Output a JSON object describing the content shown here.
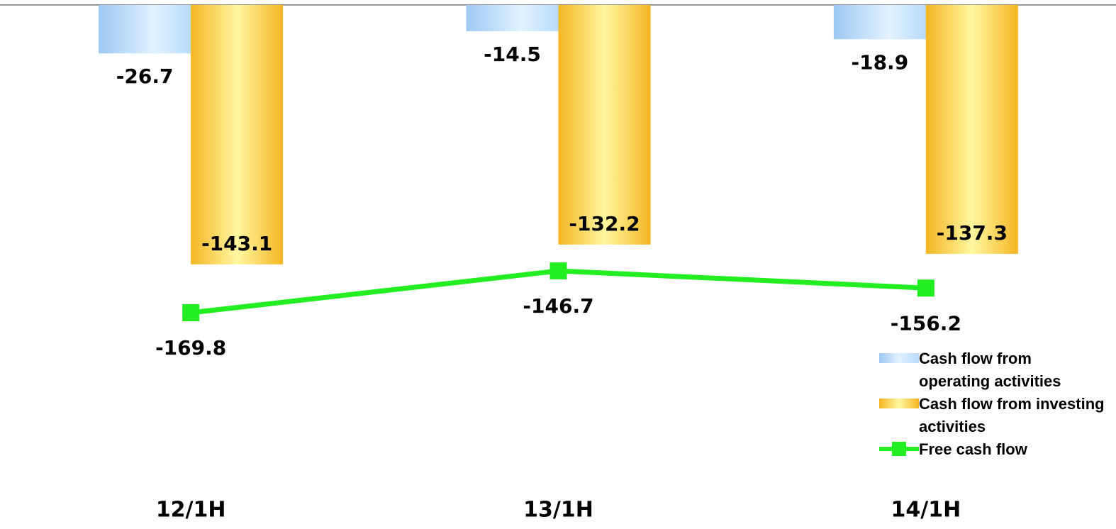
{
  "chart_data": {
    "type": "bar-line",
    "categories": [
      "12/1H",
      "13/1H",
      "14/1H"
    ],
    "series": [
      {
        "name": "Cash flow from operating activities",
        "type": "bar",
        "color": "#a8d0f5",
        "values": [
          -26.7,
          -14.5,
          -18.9
        ]
      },
      {
        "name": "Cash flow from investing activities",
        "type": "bar",
        "color": "#f7c234",
        "values": [
          -143.1,
          -132.2,
          -137.3
        ]
      },
      {
        "name": "Free cash flow",
        "type": "line",
        "color": "#22ee22",
        "values": [
          -169.8,
          -146.7,
          -156.2
        ]
      }
    ],
    "ylim": [
      -280,
      0
    ],
    "legend": "bottom-right"
  }
}
